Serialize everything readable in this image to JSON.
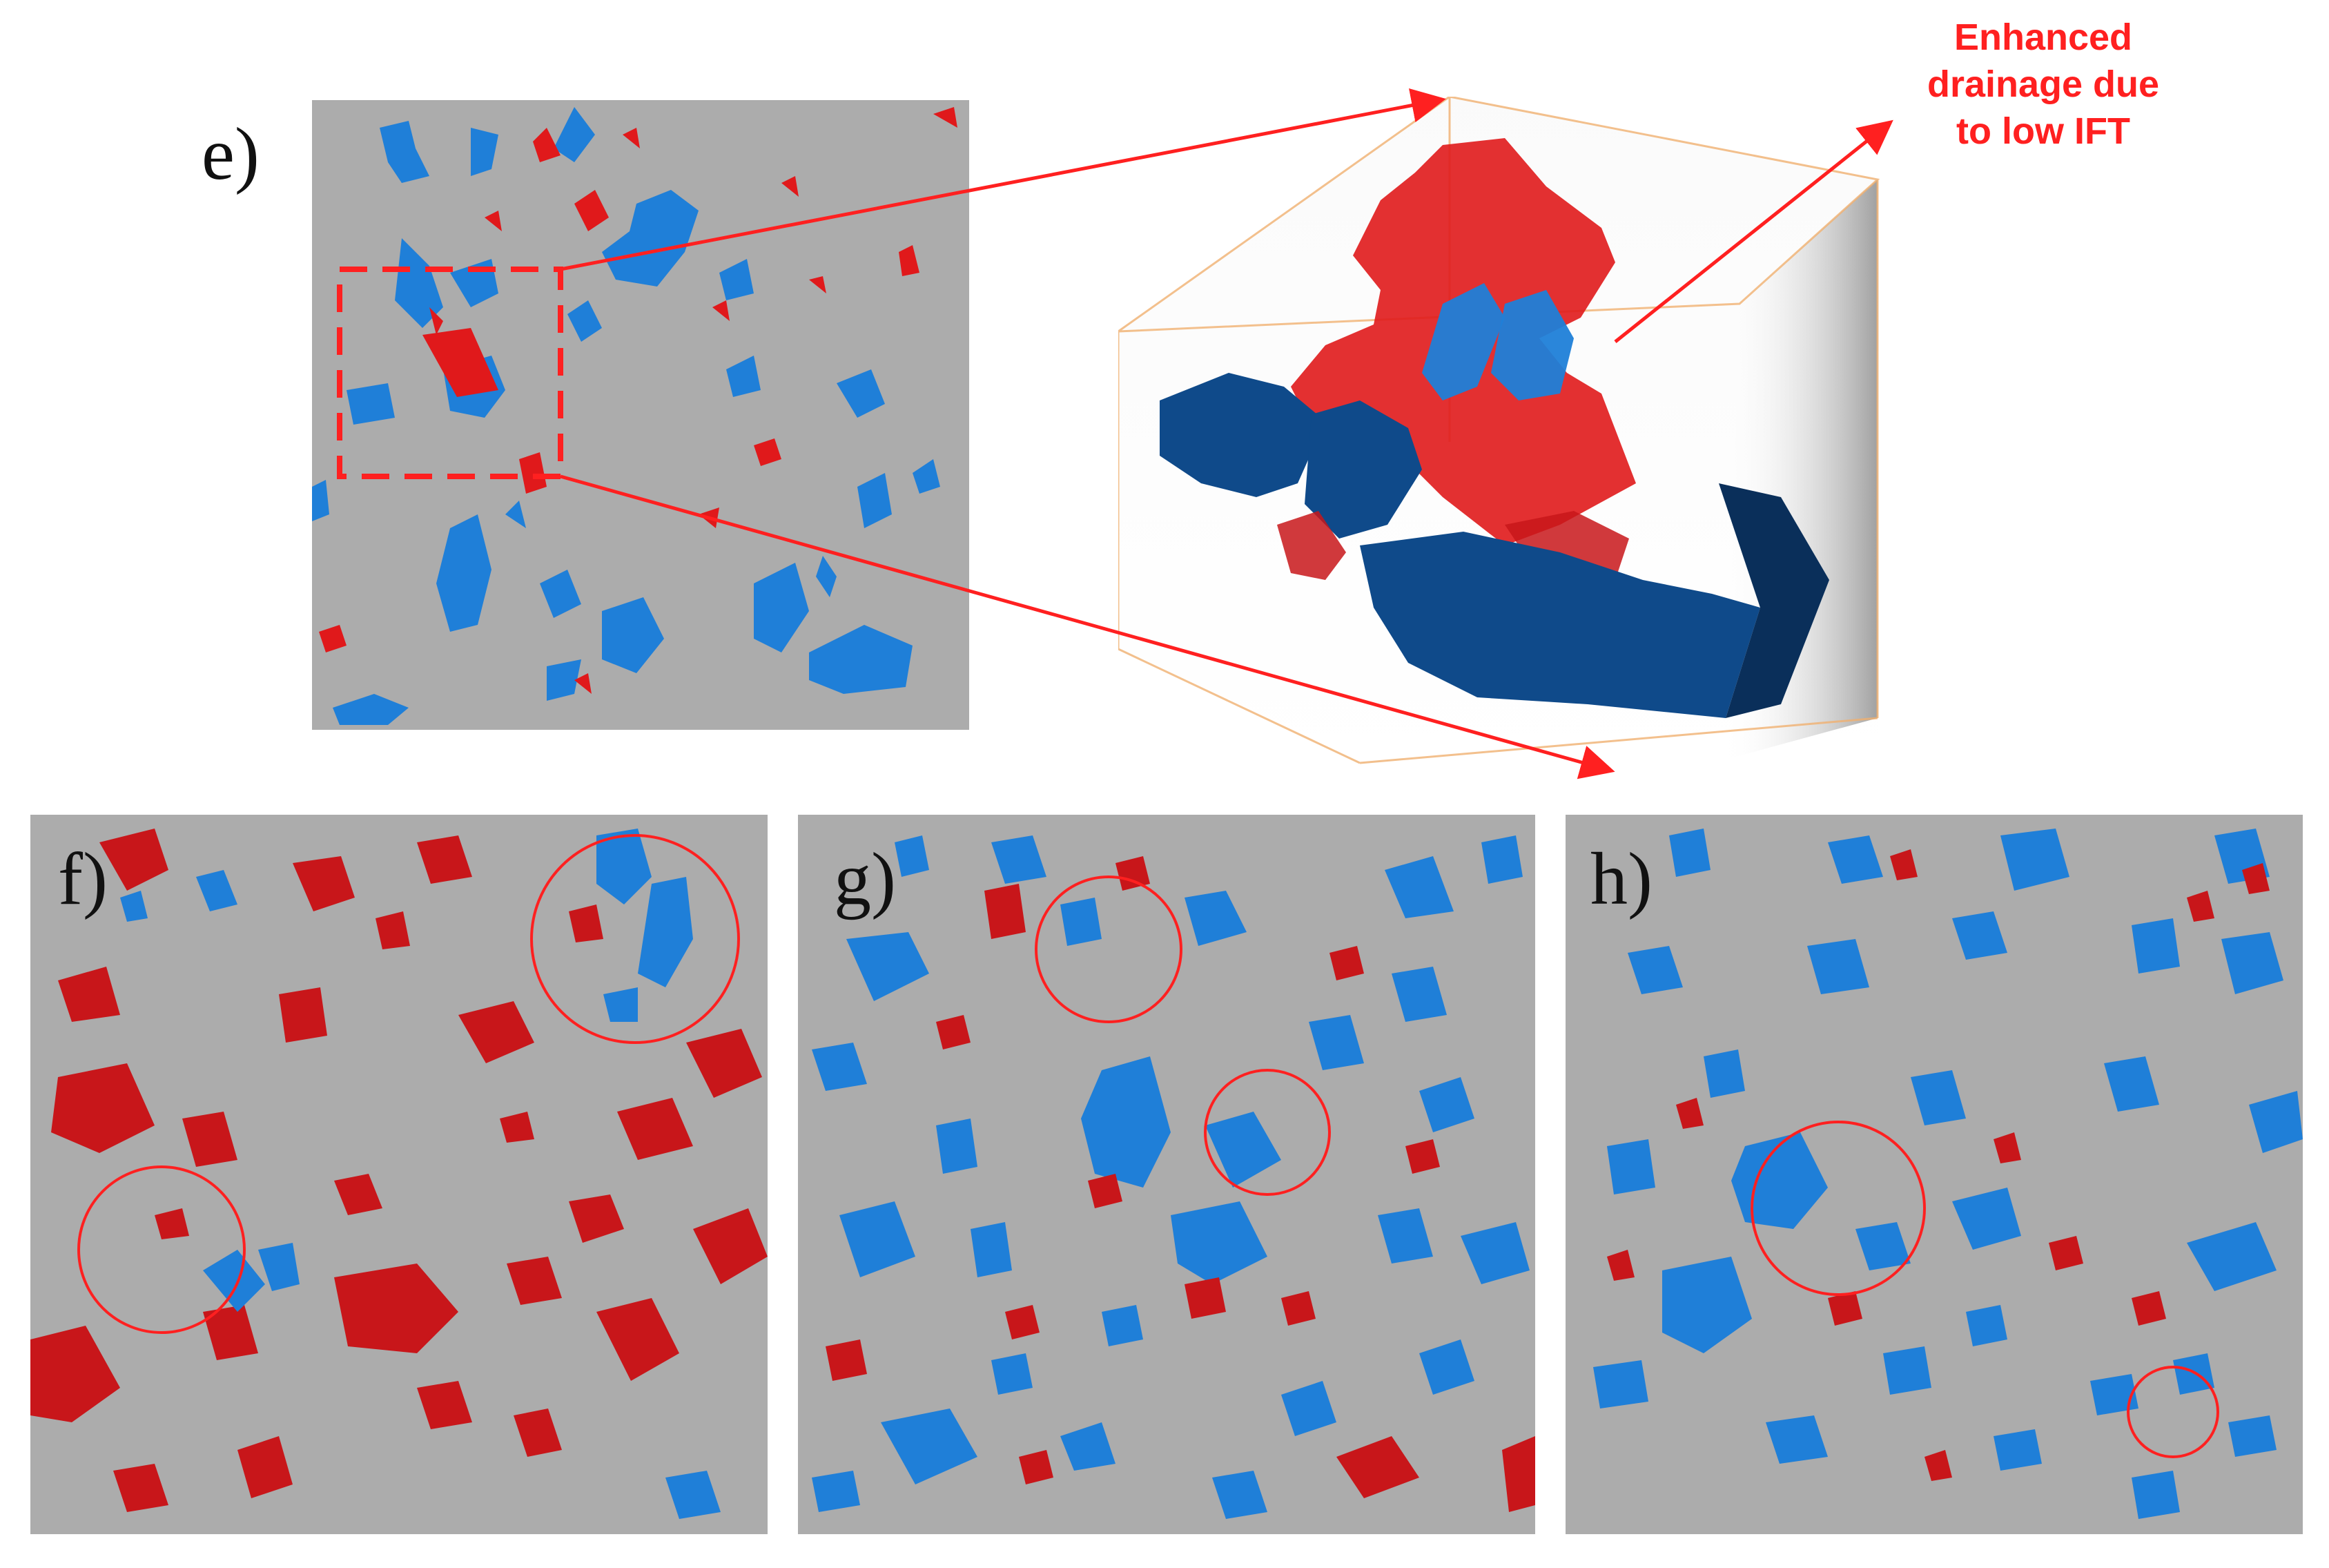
{
  "labels": {
    "e": "e)",
    "f": "f)",
    "g": "g)",
    "h": "h)"
  },
  "callout": {
    "text": "Enhanced\ndrainage due\nto low IFT",
    "color": "#ff2020"
  },
  "colors": {
    "rock": "#acacac",
    "phase_red": "#e0191b",
    "phase_dark_red": "#c8161a",
    "phase_blue": "#1f7fd8",
    "phase_dark_blue": "#0f4a8a",
    "annotation": "#ff2020"
  }
}
